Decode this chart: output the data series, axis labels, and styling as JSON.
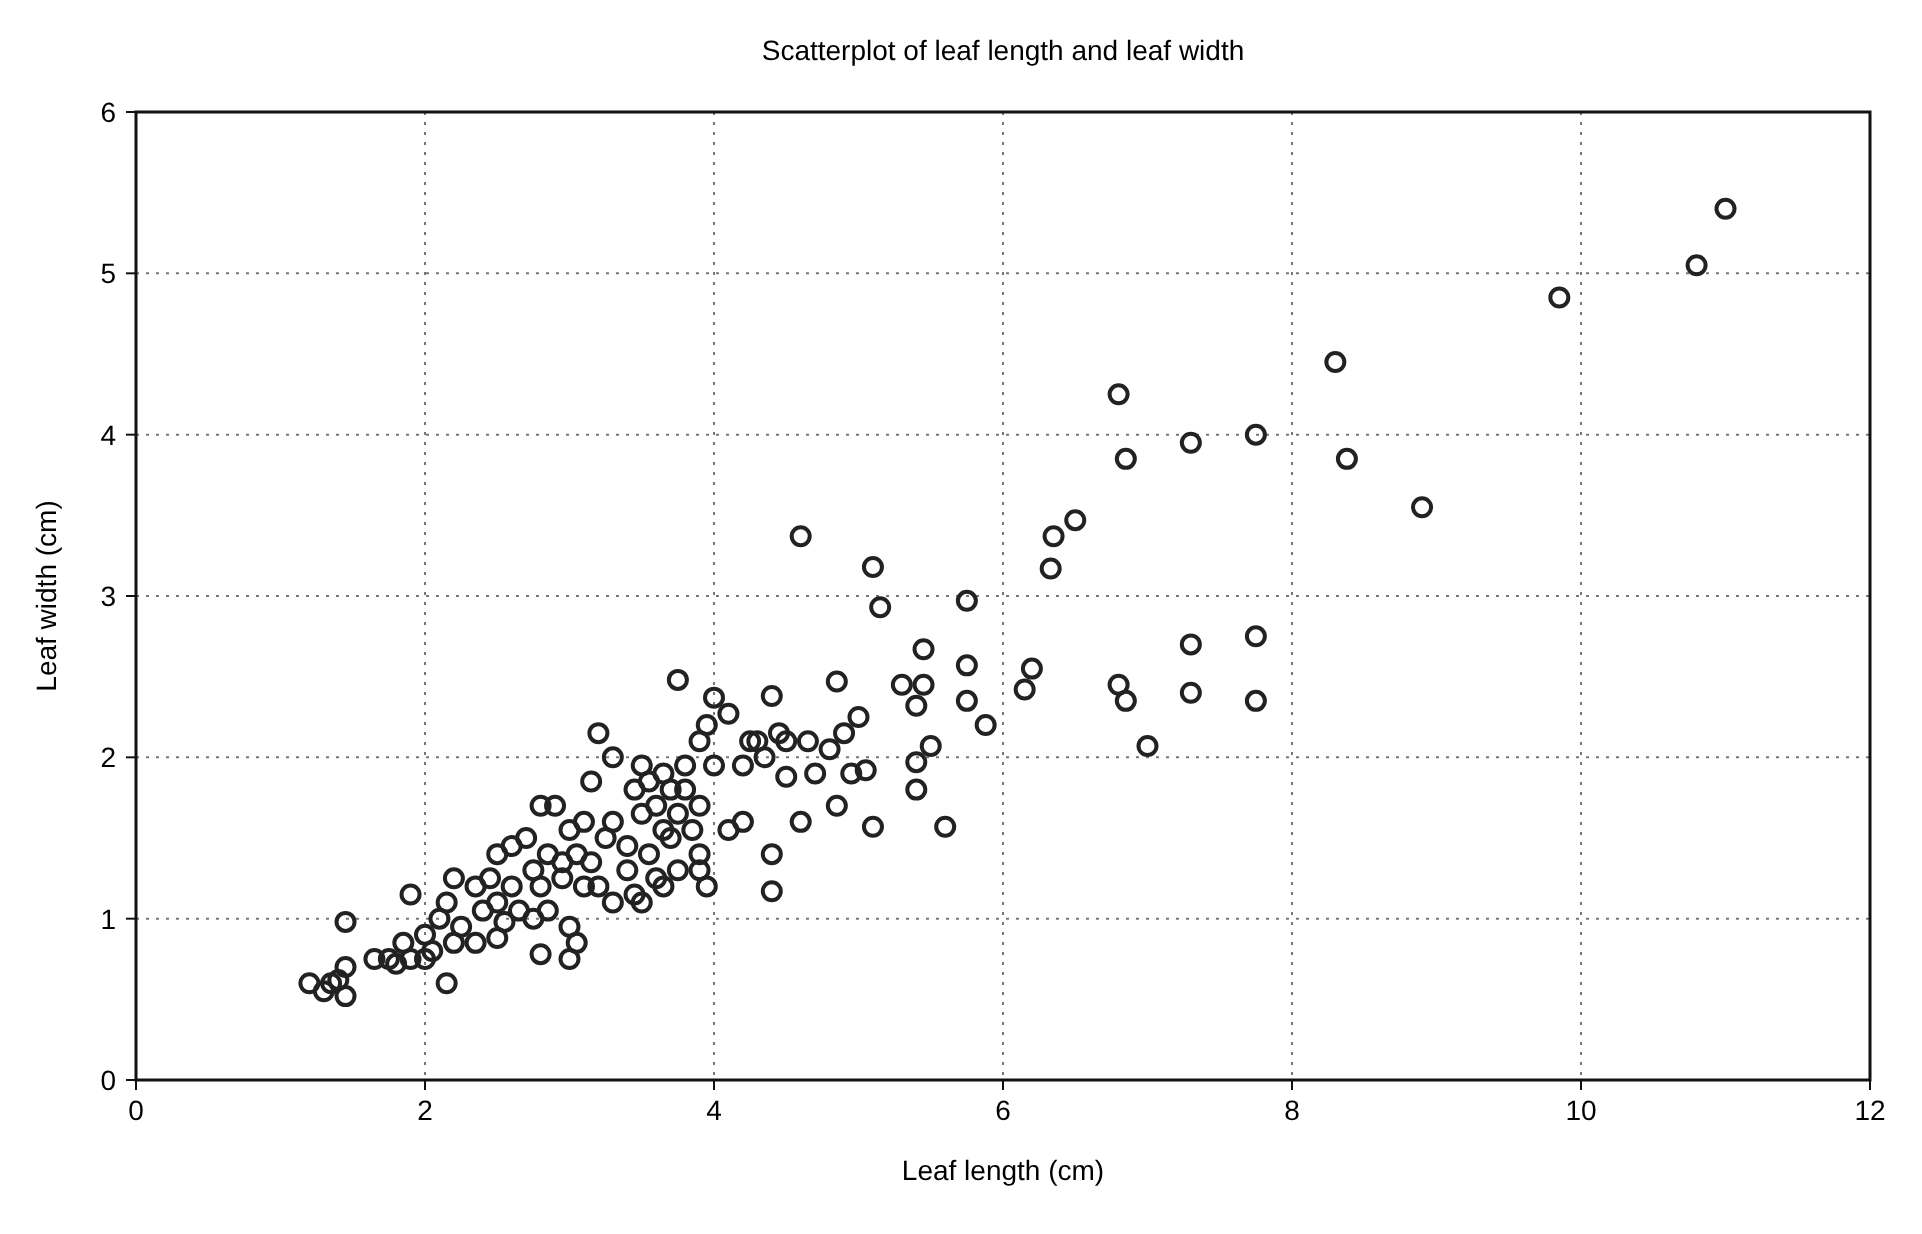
{
  "chart_data": {
    "type": "scatter",
    "title": "Scatterplot of leaf length and leaf width",
    "xlabel": "Leaf length (cm)",
    "ylabel": "Leaf width (cm)",
    "xlim": [
      0,
      12
    ],
    "ylim": [
      0,
      6
    ],
    "xticks": [
      0,
      2,
      4,
      6,
      8,
      10,
      12
    ],
    "yticks": [
      0,
      1,
      2,
      3,
      4,
      5,
      6
    ],
    "grid": true,
    "marker": "circle",
    "series": [
      {
        "color": "#222222",
        "x": [
          11.0,
          10.8,
          9.85,
          8.3,
          8.38,
          8.9,
          6.8,
          6.85,
          7.3,
          7.75,
          7.75,
          7.3,
          7.3,
          7.75,
          6.8,
          6.85,
          7.0,
          6.5,
          6.35,
          6.33,
          6.2,
          6.15,
          5.75,
          5.75,
          5.75,
          5.88,
          5.6,
          5.5,
          5.45,
          5.4,
          5.45,
          5.3,
          5.4,
          5.4,
          5.1,
          5.15,
          4.6,
          5.0,
          5.05,
          5.1,
          4.85,
          4.85,
          4.8,
          4.9,
          4.95,
          4.6,
          4.5,
          4.4,
          4.4,
          4.4,
          4.2,
          4.1,
          4.0,
          3.95,
          3.9,
          3.75,
          4.1,
          4.5,
          4.35,
          4.3,
          4.65,
          4.2,
          4.7,
          4.25,
          4.0,
          3.8,
          3.8,
          3.65,
          3.6,
          3.5,
          3.55,
          3.45,
          3.7,
          3.9,
          3.85,
          3.75,
          3.9,
          3.95,
          3.65,
          3.55,
          3.4,
          3.3,
          3.25,
          3.2,
          3.3,
          3.15,
          3.1,
          3.05,
          3.0,
          2.9,
          2.8,
          2.95,
          3.15,
          3.4,
          3.2,
          3.3,
          3.45,
          3.5,
          3.6,
          3.1,
          2.95,
          2.85,
          2.75,
          2.7,
          2.6,
          2.5,
          2.45,
          2.5,
          2.6,
          2.8,
          2.75,
          2.85,
          3.0,
          3.05,
          3.0,
          2.8,
          2.65,
          2.55,
          2.4,
          2.35,
          2.2,
          2.15,
          2.25,
          2.2,
          2.1,
          2.0,
          1.9,
          1.85,
          1.9,
          2.15,
          2.05,
          2.35,
          2.5,
          2.0,
          1.75,
          1.8,
          1.65,
          1.45,
          1.45,
          1.4,
          1.45,
          1.35,
          1.2,
          1.3,
          3.75,
          3.65,
          4.45,
          3.7,
          3.5,
          3.9
        ],
        "values": [
          5.4,
          5.05,
          4.85,
          4.45,
          3.85,
          3.55,
          4.25,
          3.85,
          3.95,
          4.0,
          2.75,
          2.7,
          2.4,
          2.35,
          2.45,
          2.35,
          2.07,
          3.47,
          3.37,
          3.17,
          2.55,
          2.42,
          2.97,
          2.57,
          2.35,
          2.2,
          1.57,
          2.07,
          2.45,
          2.32,
          2.67,
          2.45,
          1.97,
          1.8,
          3.18,
          2.93,
          3.37,
          2.25,
          1.92,
          1.57,
          2.47,
          1.7,
          2.05,
          2.15,
          1.9,
          1.6,
          1.88,
          2.38,
          1.4,
          1.17,
          1.6,
          1.55,
          2.37,
          2.2,
          2.1,
          2.48,
          2.27,
          2.1,
          2.0,
          2.1,
          2.1,
          1.95,
          1.9,
          2.1,
          1.95,
          1.95,
          1.8,
          1.9,
          1.7,
          1.65,
          1.85,
          1.8,
          1.5,
          1.7,
          1.55,
          1.3,
          1.3,
          1.2,
          1.2,
          1.4,
          1.45,
          1.6,
          1.5,
          2.15,
          2.0,
          1.85,
          1.6,
          1.4,
          1.55,
          1.7,
          1.7,
          1.35,
          1.35,
          1.3,
          1.2,
          1.1,
          1.15,
          1.1,
          1.25,
          1.2,
          1.25,
          1.4,
          1.3,
          1.5,
          1.45,
          1.4,
          1.25,
          1.1,
          1.2,
          1.2,
          1.0,
          1.05,
          0.95,
          0.85,
          0.75,
          0.78,
          1.05,
          0.98,
          1.05,
          1.2,
          1.25,
          1.1,
          0.95,
          0.85,
          1.0,
          0.9,
          1.15,
          0.85,
          0.75,
          0.6,
          0.8,
          0.85,
          0.88,
          0.75,
          0.75,
          0.72,
          0.75,
          0.98,
          0.7,
          0.62,
          0.52,
          0.6,
          0.6,
          0.55,
          1.65,
          1.55,
          2.15,
          1.8,
          1.95,
          1.4
        ]
      }
    ]
  }
}
